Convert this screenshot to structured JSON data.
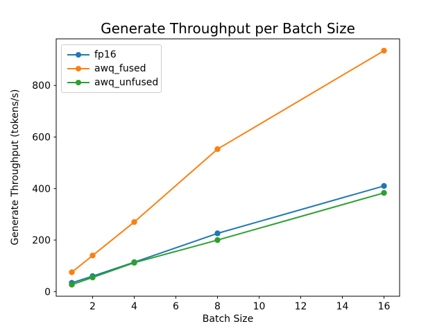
{
  "figure": {
    "title": "Generate Throughput per Batch Size",
    "xlabel": "Batch Size",
    "ylabel": "Generate Throughput (tokens/s)"
  },
  "legend": {
    "items": [
      {
        "label": "fp16",
        "color": "#1f77b4"
      },
      {
        "label": "awq_fused",
        "color": "#ff7f0e"
      },
      {
        "label": "awq_unfused",
        "color": "#2ca02c"
      }
    ]
  },
  "chart_data": {
    "type": "line",
    "title": "Generate Throughput per Batch Size",
    "xlabel": "Batch Size",
    "ylabel": "Generate Throughput (tokens/s)",
    "x": [
      1,
      2,
      4,
      8,
      16
    ],
    "series": [
      {
        "name": "fp16",
        "color": "#1f77b4",
        "values": [
          34,
          60,
          114,
          226,
          410
        ]
      },
      {
        "name": "awq_fused",
        "color": "#ff7f0e",
        "values": [
          75,
          140,
          270,
          553,
          935
        ]
      },
      {
        "name": "awq_unfused",
        "color": "#2ca02c",
        "values": [
          27,
          55,
          112,
          200,
          383
        ]
      }
    ],
    "xticks": [
      2,
      4,
      6,
      8,
      10,
      12,
      14,
      16
    ],
    "yticks": [
      0,
      200,
      400,
      600,
      800
    ],
    "xlim": [
      0.25,
      16.75
    ],
    "ylim": [
      -18,
      981
    ],
    "grid": false,
    "legend_position": "upper left",
    "marker": "o",
    "line_width": 2,
    "marker_radius": 4.2,
    "axis_color": "#000000",
    "background": "#ffffff"
  }
}
